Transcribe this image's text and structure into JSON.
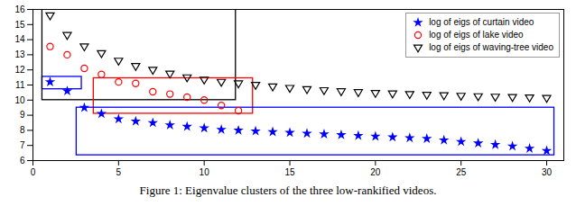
{
  "chart_data": {
    "type": "scatter",
    "title": "Figure 1: Eigenvalue clusters of the three low-rankified videos.",
    "xlim": [
      0,
      31
    ],
    "ylim": [
      6,
      16
    ],
    "xticks": [
      0,
      5,
      10,
      15,
      20,
      25,
      30
    ],
    "yticks": [
      6,
      7,
      8,
      9,
      10,
      11,
      12,
      13,
      14,
      15,
      16
    ],
    "grid": false,
    "legend": "upper right",
    "series": [
      {
        "name": "log of eigs of curtain video",
        "color": "blue",
        "marker": "star",
        "x": [
          1,
          2,
          3,
          4,
          5,
          6,
          7,
          8,
          9,
          10,
          11,
          12,
          13,
          14,
          15,
          16,
          17,
          18,
          19,
          20,
          21,
          22,
          23,
          24,
          25,
          26,
          27,
          28,
          29,
          30
        ],
        "values": [
          11.2,
          10.6,
          9.5,
          9.1,
          8.75,
          8.6,
          8.5,
          8.35,
          8.25,
          8.15,
          8.05,
          8.0,
          7.95,
          7.9,
          7.85,
          7.8,
          7.75,
          7.7,
          7.65,
          7.6,
          7.55,
          7.5,
          7.45,
          7.35,
          7.25,
          7.15,
          7.05,
          6.95,
          6.8,
          6.65
        ]
      },
      {
        "name": "log of eigs of lake video",
        "color": "red",
        "marker": "open_circle",
        "x": [
          1,
          2,
          3,
          4,
          5,
          6,
          7,
          8,
          9,
          10,
          11,
          12
        ],
        "values": [
          13.55,
          13.0,
          12.1,
          11.7,
          11.2,
          11.1,
          10.55,
          10.4,
          10.2,
          10.0,
          9.65,
          9.3
        ]
      },
      {
        "name": "log of eigs of waving-tree video",
        "color": "black",
        "marker": "open_triangle_down",
        "x": [
          1,
          2,
          3,
          4,
          5,
          6,
          7,
          8,
          9,
          10,
          11,
          12,
          13,
          14,
          15,
          16,
          17,
          18,
          19,
          20,
          21,
          22,
          23,
          24,
          25,
          26,
          27,
          28,
          29,
          30
        ],
        "values": [
          15.6,
          14.3,
          13.55,
          13.1,
          12.6,
          12.25,
          12.0,
          11.75,
          11.5,
          11.35,
          11.2,
          11.1,
          11.0,
          10.9,
          10.8,
          10.72,
          10.65,
          10.58,
          10.52,
          10.47,
          10.43,
          10.39,
          10.35,
          10.31,
          10.28,
          10.25,
          10.22,
          10.2,
          10.17,
          10.14
        ]
      }
    ],
    "boxes": [
      {
        "x": 0.55,
        "y": 10.72,
        "width": 2.3,
        "height": 0.82,
        "color": "blue"
      },
      {
        "x": 0.55,
        "y": 10.0,
        "width": 11.3,
        "height": 6.0,
        "color": "black"
      },
      {
        "x": 3.55,
        "y": 9.1,
        "width": 9.3,
        "height": 2.35,
        "color": "red"
      },
      {
        "x": 2.55,
        "y": 6.35,
        "width": 27.9,
        "height": 3.15,
        "color": "blue"
      }
    ]
  }
}
